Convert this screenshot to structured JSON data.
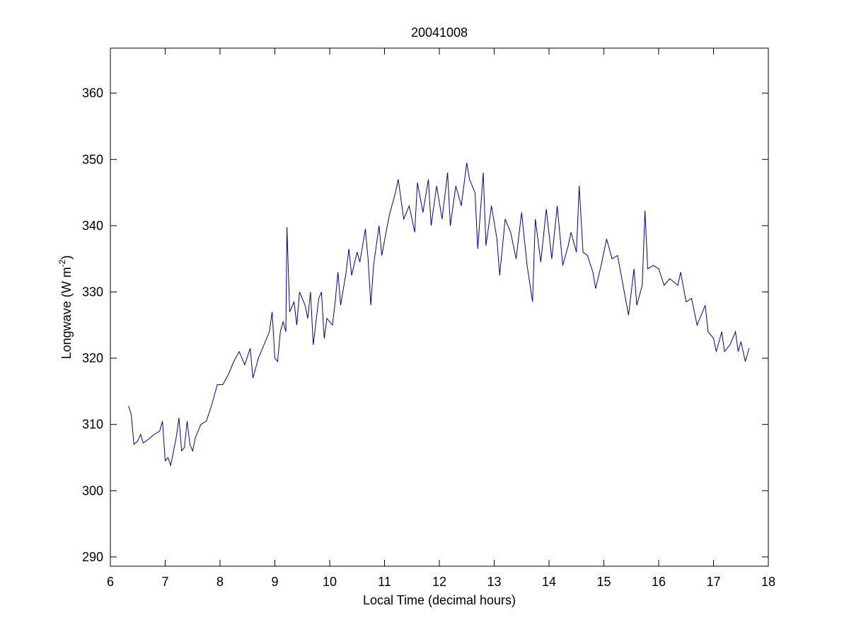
{
  "chart_data": {
    "type": "line",
    "title": "20041008",
    "x_label": "Local Time (decimal hours)",
    "y_label": {
      "text": "Longwave (W m",
      "superscript": "-2",
      "suffix": ")"
    },
    "color": "#0000a0",
    "xlim": [
      6,
      18
    ],
    "ylim": [
      288.6,
      366.8
    ],
    "xticks": [
      6,
      7,
      8,
      9,
      10,
      11,
      12,
      13,
      14,
      15,
      16,
      17,
      18
    ],
    "yticks": [
      290,
      300,
      310,
      320,
      330,
      340,
      350,
      360
    ],
    "x": [
      6.33,
      6.38,
      6.43,
      6.5,
      6.55,
      6.6,
      6.7,
      6.8,
      6.9,
      6.95,
      7.0,
      7.05,
      7.1,
      7.2,
      7.25,
      7.3,
      7.35,
      7.4,
      7.45,
      7.5,
      7.55,
      7.65,
      7.75,
      7.85,
      7.95,
      8.05,
      8.15,
      8.25,
      8.35,
      8.45,
      8.55,
      8.6,
      8.7,
      8.8,
      8.9,
      8.95,
      9.0,
      9.05,
      9.1,
      9.15,
      9.2,
      9.22,
      9.27,
      9.35,
      9.4,
      9.45,
      9.55,
      9.6,
      9.65,
      9.7,
      9.8,
      9.85,
      9.9,
      9.95,
      10.05,
      10.1,
      10.15,
      10.2,
      10.3,
      10.35,
      10.4,
      10.5,
      10.55,
      10.65,
      10.7,
      10.75,
      10.8,
      10.9,
      10.95,
      11.05,
      11.1,
      11.2,
      11.25,
      11.35,
      11.45,
      11.55,
      11.6,
      11.7,
      11.8,
      11.85,
      11.95,
      12.05,
      12.15,
      12.2,
      12.3,
      12.4,
      12.5,
      12.55,
      12.65,
      12.7,
      12.8,
      12.85,
      12.95,
      13.05,
      13.1,
      13.2,
      13.3,
      13.4,
      13.5,
      13.6,
      13.7,
      13.75,
      13.85,
      13.95,
      14.05,
      14.15,
      14.25,
      14.35,
      14.4,
      14.5,
      14.55,
      14.62,
      14.7,
      14.8,
      14.85,
      14.95,
      15.05,
      15.15,
      15.25,
      15.35,
      15.45,
      15.55,
      15.6,
      15.7,
      15.75,
      15.8,
      15.9,
      16.0,
      16.1,
      16.2,
      16.35,
      16.4,
      16.5,
      16.6,
      16.7,
      16.8,
      16.85,
      16.9,
      17.0,
      17.05,
      17.15,
      17.2,
      17.3,
      17.4,
      17.45,
      17.5,
      17.58,
      17.65
    ],
    "values": [
      312.8,
      311.5,
      307,
      307.5,
      308.5,
      307.2,
      307.8,
      308.5,
      309,
      310.5,
      304.5,
      305,
      303.8,
      308,
      311,
      306,
      306.5,
      310.5,
      307,
      306,
      308,
      310,
      310.5,
      313,
      316,
      316,
      317.5,
      319.5,
      321,
      319,
      321.5,
      317,
      320,
      322,
      324,
      327,
      320,
      319.5,
      324,
      325.5,
      324,
      339.8,
      327,
      328.5,
      325,
      330,
      328,
      326,
      330,
      322,
      329,
      330,
      323,
      326,
      325,
      328.5,
      333,
      328,
      333,
      336.5,
      332.5,
      336,
      334.5,
      339.5,
      335,
      328,
      334,
      340,
      335.5,
      340,
      342,
      345,
      347,
      341,
      343,
      339,
      346.5,
      342,
      347,
      340,
      346,
      341,
      348,
      340,
      346,
      343,
      349.5,
      347,
      345,
      336.5,
      348,
      337,
      343,
      338,
      332.5,
      341,
      339,
      335,
      342,
      334,
      328.5,
      341,
      334.5,
      342.5,
      335,
      343,
      334,
      337,
      339,
      336,
      346,
      336,
      335.5,
      333,
      330.5,
      334,
      338,
      335,
      335.5,
      331,
      326.5,
      333.5,
      328,
      331,
      342.3,
      333.5,
      334,
      333.5,
      331,
      332,
      331,
      333,
      328.5,
      329,
      325,
      327,
      328,
      324,
      323,
      321,
      324,
      321,
      322,
      324,
      321,
      322.5,
      319.5,
      321.5
    ]
  }
}
